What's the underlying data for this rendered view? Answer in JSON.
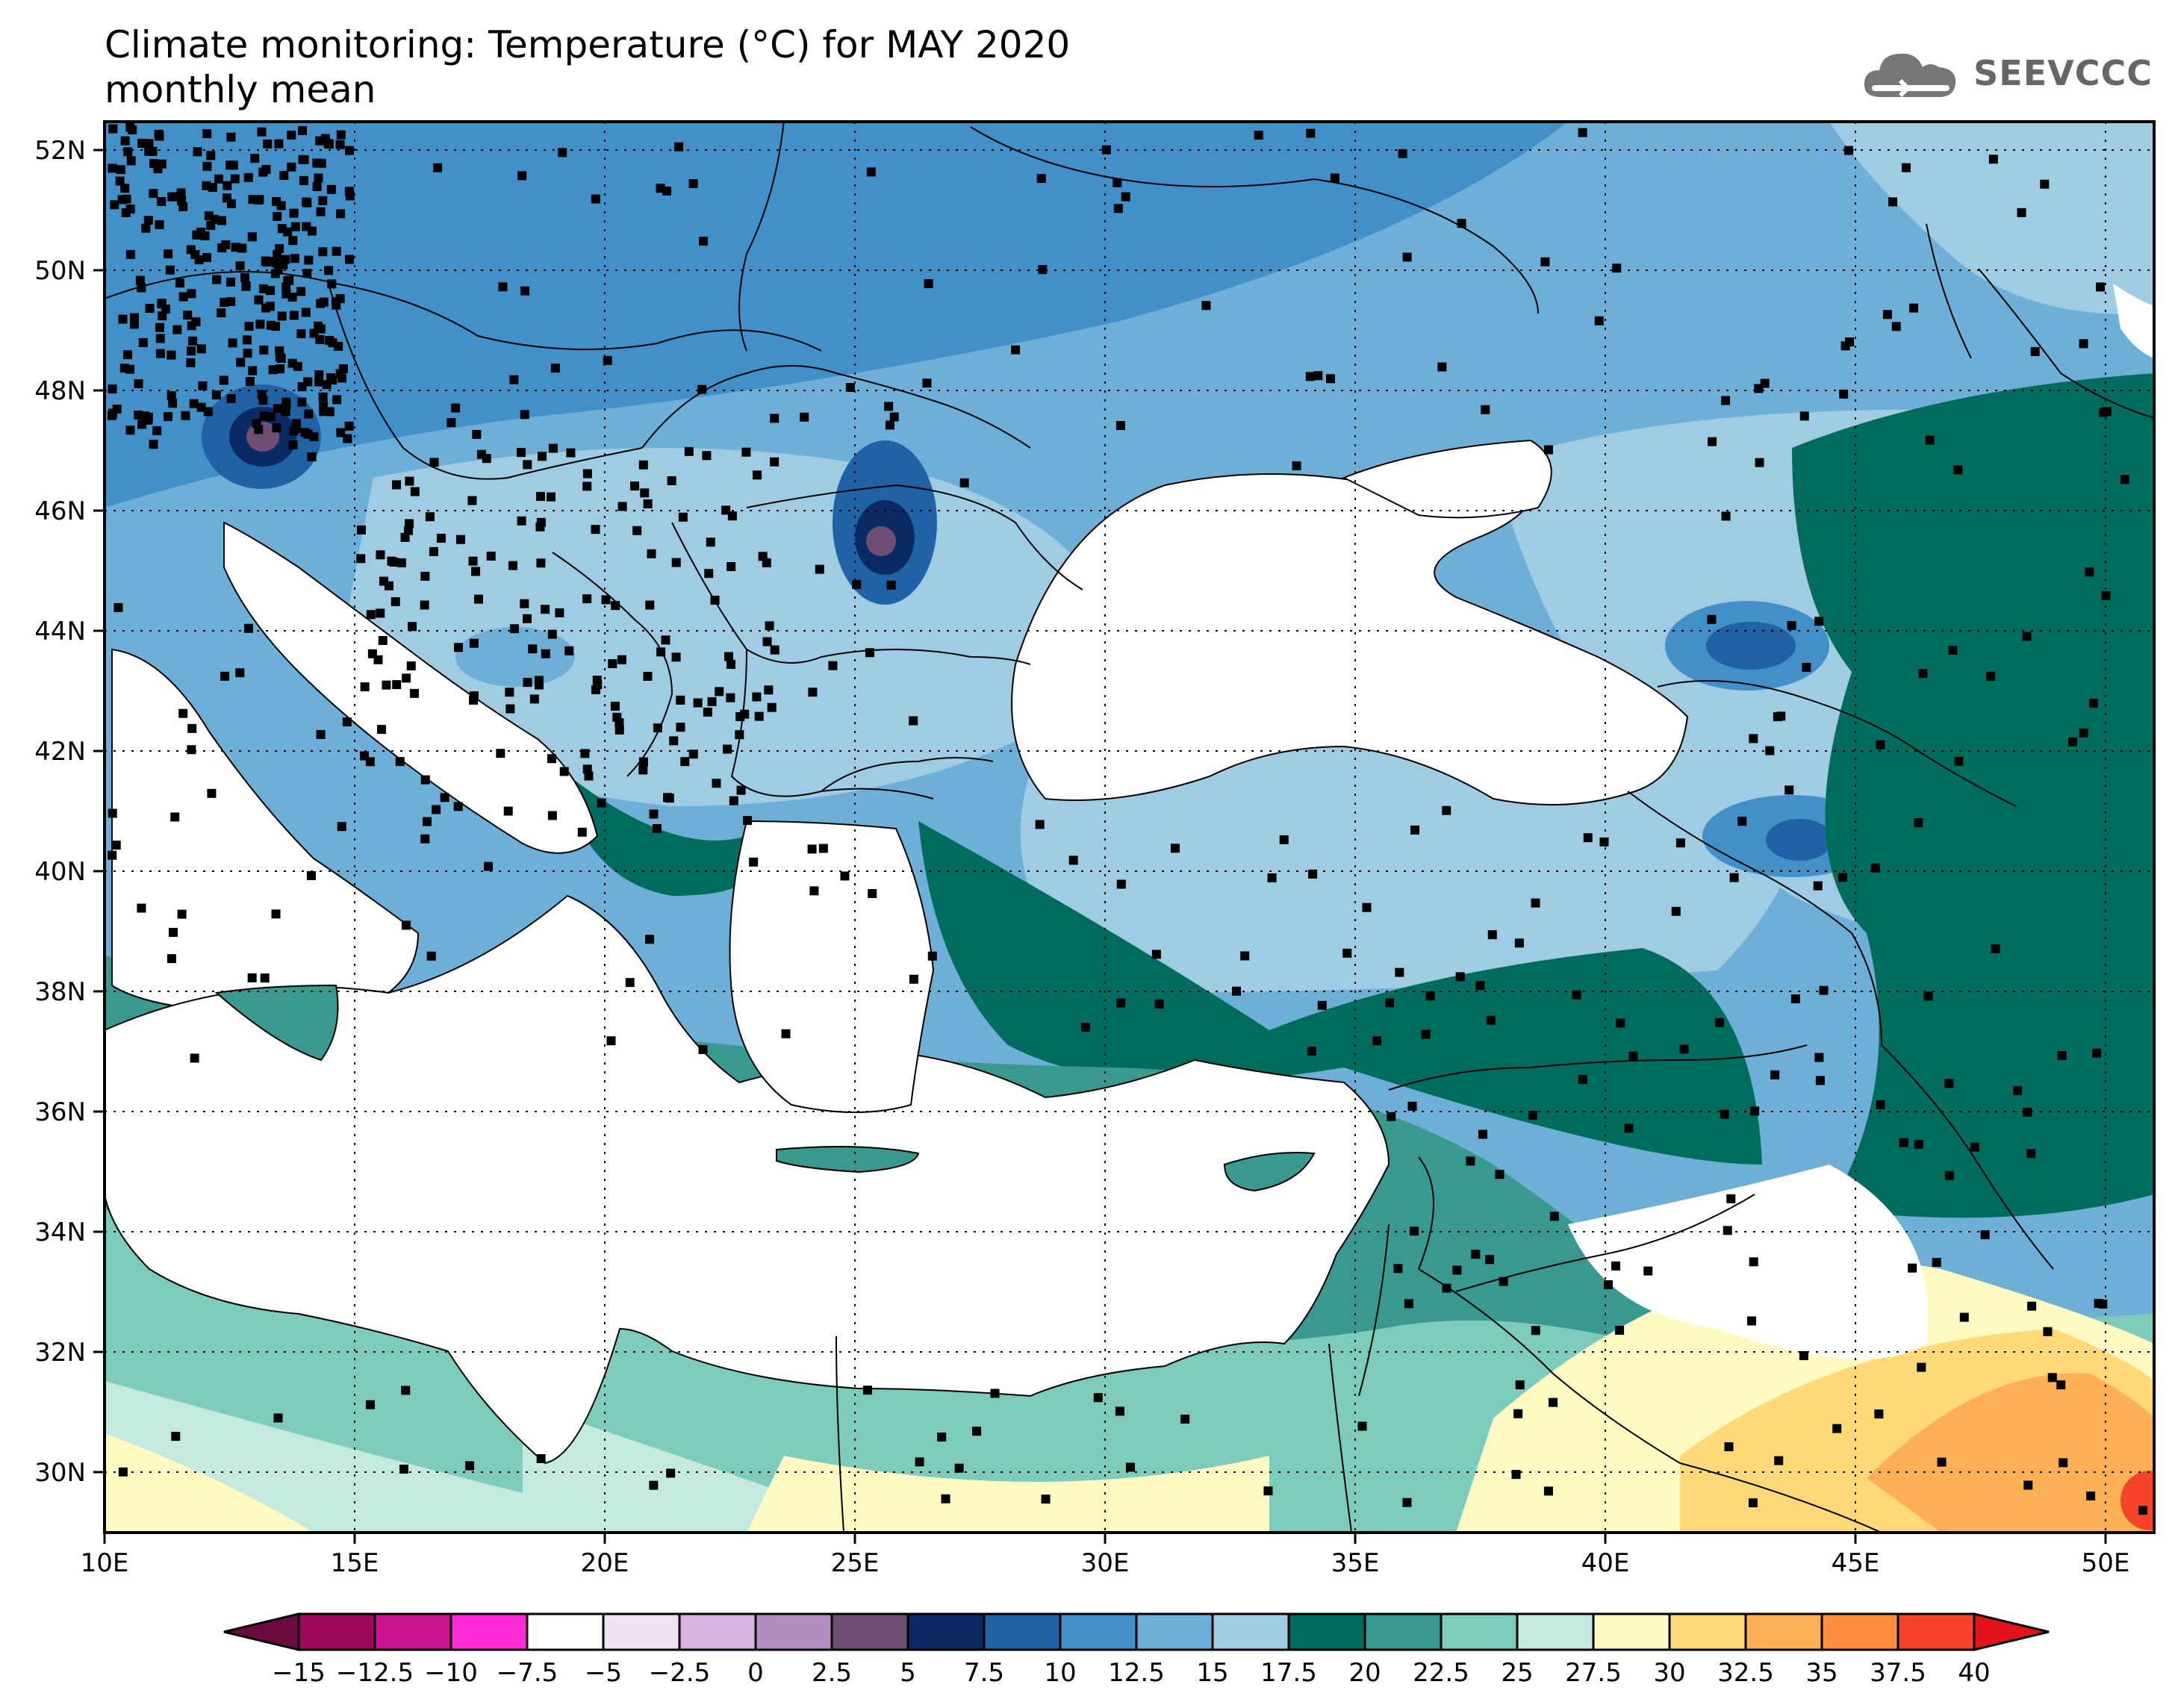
{
  "header": {
    "title_line1": "Climate monitoring: Temperature (°C) for MAY 2020",
    "title_line2": "monthly mean",
    "logo_text": "SEEVCCC"
  },
  "map": {
    "lon_range": [
      10,
      51
    ],
    "lat_range": [
      29,
      52.5
    ],
    "x_ticks": [
      "10E",
      "15E",
      "20E",
      "25E",
      "30E",
      "35E",
      "40E",
      "45E",
      "50E"
    ],
    "y_ticks": [
      "52N",
      "50N",
      "48N",
      "46N",
      "44N",
      "42N",
      "40N",
      "38N",
      "36N",
      "34N",
      "32N",
      "30N"
    ],
    "gridlines": "dotted"
  },
  "colorbar": {
    "labels": [
      "−15",
      "−12.5",
      "−10",
      "−7.5",
      "−5",
      "−2.5",
      "0",
      "2.5",
      "5",
      "7.5",
      "10",
      "12.5",
      "15",
      "17.5",
      "20",
      "22.5",
      "25",
      "27.5",
      "30",
      "32.5",
      "35",
      "37.5",
      "40"
    ],
    "colors": [
      "#9e0a5a",
      "#c9128f",
      "#ff2ad6",
      "#ffffff",
      "#f0e2f2",
      "#d8b4e2",
      "#b08cc0",
      "#6e4f73",
      "#0b2a64",
      "#1f62a5",
      "#4390c9",
      "#6eafd7",
      "#9fcbe3",
      "#006c5d",
      "#3a998f",
      "#7ccbbb",
      "#c4eadf",
      "#fff9c2",
      "#ffd978",
      "#ffb055",
      "#ff8f3e",
      "#f5442a"
    ],
    "end_low_color": "#6b0a3e",
    "end_high_color": "#e3131d"
  }
}
